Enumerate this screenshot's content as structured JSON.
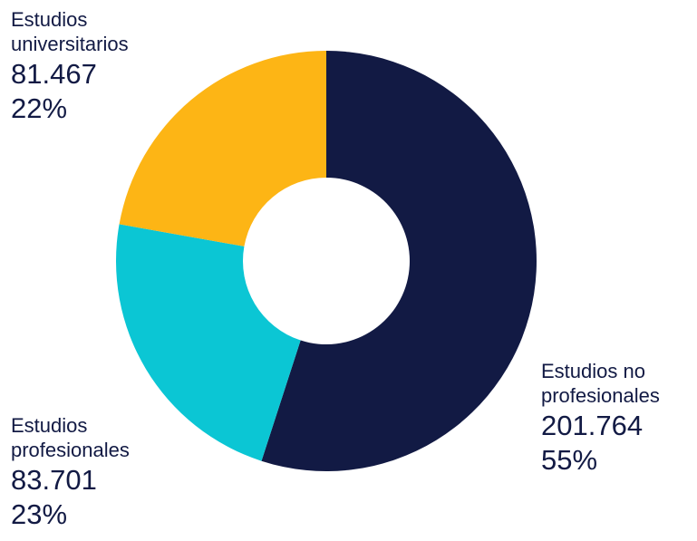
{
  "chart_data": {
    "type": "donut",
    "categories": [
      "Estudios no profesionales",
      "Estudios profesionales",
      "Estudios universitarios"
    ],
    "values": [
      201764,
      83701,
      81467
    ],
    "value_labels": [
      "201.764",
      "83.701",
      "81.467"
    ],
    "percent_labels": [
      "55%",
      "23%",
      "22%"
    ],
    "colors": [
      "#121a44",
      "#0bc6d4",
      "#fdb515"
    ]
  }
}
